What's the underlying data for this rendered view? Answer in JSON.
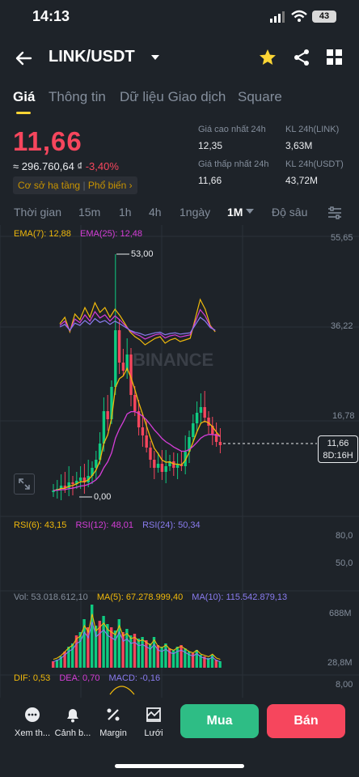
{
  "status": {
    "time": "14:13",
    "battery": "43"
  },
  "header": {
    "pair": "LINK/USDT"
  },
  "tabs": [
    {
      "label": "Giá",
      "active": true
    },
    {
      "label": "Thông tin"
    },
    {
      "label": "Dữ liệu Giao dịch"
    },
    {
      "label": "Square"
    }
  ],
  "ticker": {
    "price": "11,66",
    "fiat": "≈ 296.760,64 ₫",
    "change": "-3,40%",
    "tag_base": "Cơ sở hạ tầng",
    "tag_popular": "Phổ biến",
    "high_label": "Giá cao nhất 24h",
    "high_value": "12,35",
    "low_label": "Giá thấp nhất 24h",
    "low_value": "11,66",
    "vol_link_label": "KL 24h(LINK)",
    "vol_link_value": "3,63M",
    "vol_usdt_label": "KL 24h(USDT)",
    "vol_usdt_value": "43,72M"
  },
  "timeframes": [
    "Thời gian",
    "15m",
    "1h",
    "4h",
    "1ngày",
    "1M",
    "Độ sâu"
  ],
  "selected_timeframe": "1M",
  "main_chart": {
    "ema7_label": "EMA(7): 12,88",
    "ema25_label": "EMA(25): 12,48",
    "y_ticks": [
      "55,65",
      "36,22",
      "16,78"
    ],
    "high_marker": "53,00",
    "low_marker": "0,00",
    "current_price": "11,66",
    "countdown": "8D:16H",
    "watermark": "BINANCE"
  },
  "rsi": {
    "rsi6": "RSI(6): 43,15",
    "rsi12": "RSI(12): 48,01",
    "rsi24": "RSI(24): 50,34",
    "y_ticks": [
      "80,0",
      "50,0"
    ]
  },
  "volume": {
    "vol": "Vol: 53.018.612,10",
    "ma5": "MA(5): 67.278.999,40",
    "ma10": "MA(10): 115.542.879,13",
    "y_ticks": [
      "688M",
      "28,8M"
    ]
  },
  "macd": {
    "dif": "DIF: 0,53",
    "dea": "DEA: 0,70",
    "macd": "MACD: -0,16",
    "y_tick": "8,00"
  },
  "bottom_nav": [
    {
      "label": "Xem th...",
      "icon": "chat-icon"
    },
    {
      "label": "Cảnh b...",
      "icon": "bell-icon"
    },
    {
      "label": "Margin",
      "icon": "percent-icon"
    },
    {
      "label": "Lưới",
      "icon": "grid-trading-icon"
    }
  ],
  "buy_label": "Mua",
  "sell_label": "Bán",
  "colors": {
    "up": "#0ecb81",
    "down": "#f6465d",
    "accent": "#fcd535",
    "ema7": "#f0b90b",
    "ema25": "#d63ed9"
  }
}
